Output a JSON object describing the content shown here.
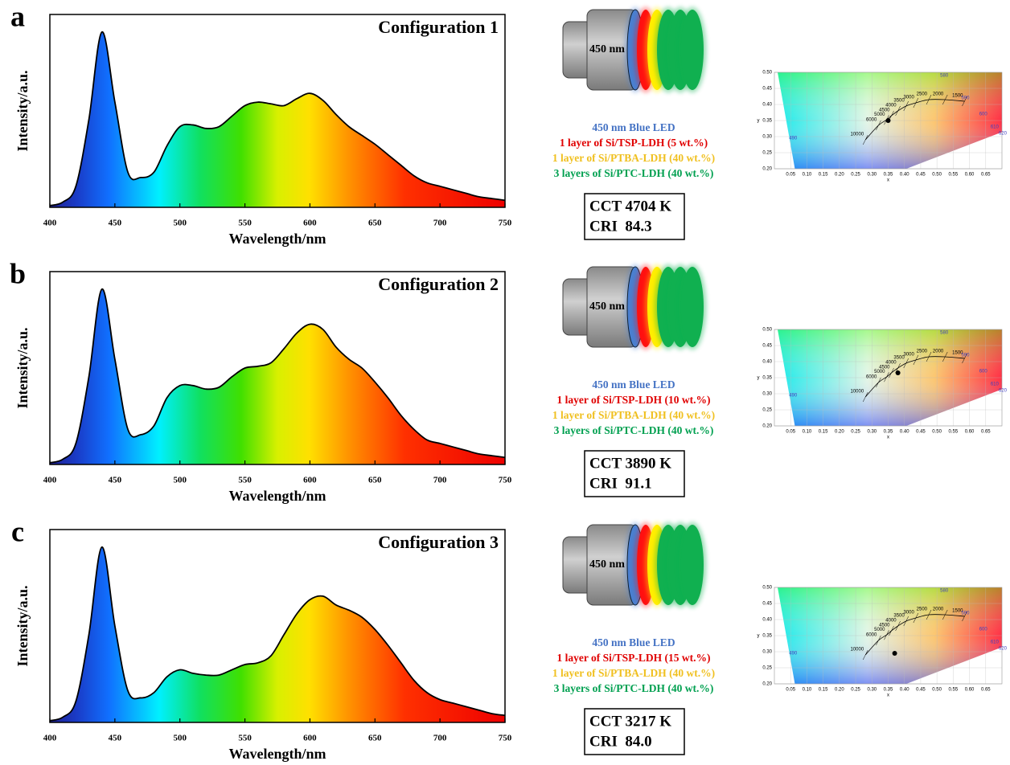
{
  "chart_data": [
    {
      "type": "line",
      "panel_label": "a",
      "title": "Configuration 1",
      "xlabel": "Wavelength/nm",
      "ylabel": "Intensity/a.u.",
      "x": [
        400,
        410,
        420,
        430,
        440,
        450,
        460,
        470,
        480,
        490,
        500,
        510,
        520,
        530,
        540,
        550,
        560,
        570,
        580,
        590,
        600,
        610,
        620,
        630,
        640,
        650,
        660,
        670,
        680,
        690,
        700,
        710,
        720,
        730,
        740,
        750
      ],
      "values": [
        0.01,
        0.03,
        0.12,
        0.5,
        1.0,
        0.6,
        0.2,
        0.17,
        0.2,
        0.35,
        0.46,
        0.47,
        0.45,
        0.46,
        0.52,
        0.58,
        0.6,
        0.59,
        0.58,
        0.62,
        0.65,
        0.61,
        0.53,
        0.46,
        0.41,
        0.36,
        0.3,
        0.24,
        0.18,
        0.14,
        0.12,
        0.1,
        0.08,
        0.06,
        0.05,
        0.04
      ],
      "color": "#000000",
      "xlim": [
        400,
        750
      ],
      "xticks": [
        400,
        450,
        500,
        550,
        600,
        650,
        700,
        750
      ],
      "ylim": [
        0,
        1.1
      ],
      "led_label": "450 nm",
      "layers": [
        {
          "text": "450 nm Blue LED",
          "color": "#4472c4"
        },
        {
          "text": "1 layer of Si/TSP-LDH (5 wt.%)",
          "color": "#e00000"
        },
        {
          "text": "1 layer of Si/PTBA-LDH (40 wt.%)",
          "color": "#f0c020"
        },
        {
          "text": "3 layers of Si/PTC-LDH (40 wt.%)",
          "color": "#00a050"
        }
      ],
      "cct": "CCT 4704 K",
      "cri": "CRI  84.3"
    },
    {
      "type": "scatter",
      "xlabel": "x",
      "ylabel": "y",
      "xlim": [
        0,
        0.7
      ],
      "ylim": [
        0.2,
        0.5
      ],
      "grid": true,
      "xticks": [
        0.05,
        {
          "value": 0.1,
          "label": "0.10"
        },
        0.15,
        {
          "value": 0.2,
          "label": "0.20"
        },
        0.25,
        {
          "value": 0.3,
          "label": "0.30"
        },
        0.35,
        {
          "value": 0.4,
          "label": "0.40"
        },
        0.45,
        {
          "value": 0.5,
          "label": "0.50"
        },
        0.55,
        {
          "value": 0.6,
          "label": "0.60"
        },
        0.65
      ],
      "yticks": [
        {
          "value": 0.2,
          "label": "0.20"
        },
        0.25,
        {
          "value": 0.3,
          "label": "0.30"
        },
        0.35,
        {
          "value": 0.4,
          "label": "0.40"
        },
        0.45,
        {
          "value": 0.5,
          "label": "0.50"
        }
      ],
      "x": [
        0.35
      ],
      "values": [
        0.35
      ],
      "color": "#000000",
      "locus": {
        "labels": [
          "10000",
          "6000",
          "5000",
          "4500",
          "4000",
          "3500",
          "3000",
          "2500",
          "2000",
          "1500"
        ],
        "x": [
          0.28,
          0.32,
          0.345,
          0.36,
          0.38,
          0.405,
          0.435,
          0.475,
          0.525,
          0.585
        ],
        "y": [
          0.29,
          0.335,
          0.352,
          0.365,
          0.38,
          0.395,
          0.405,
          0.415,
          0.415,
          0.41
        ]
      },
      "wavelengths": {
        "labels": [
          "580",
          "590",
          "600",
          "610",
          "620",
          "490"
        ],
        "x": [
          0.51,
          0.575,
          0.63,
          0.665,
          0.69,
          0.045
        ],
        "y": [
          0.49,
          0.42,
          0.37,
          0.33,
          0.31,
          0.295
        ],
        "color": "#4040c0"
      }
    },
    {
      "type": "line",
      "panel_label": "b",
      "title": "Configuration 2",
      "xlabel": "Wavelength/nm",
      "ylabel": "Intensity/a.u.",
      "x": [
        400,
        410,
        420,
        430,
        440,
        450,
        460,
        470,
        480,
        490,
        500,
        510,
        520,
        530,
        540,
        550,
        560,
        570,
        580,
        590,
        600,
        610,
        620,
        630,
        640,
        650,
        660,
        670,
        680,
        690,
        700,
        710,
        720,
        730,
        740,
        750
      ],
      "values": [
        0.01,
        0.03,
        0.12,
        0.5,
        1.0,
        0.6,
        0.2,
        0.17,
        0.22,
        0.38,
        0.45,
        0.45,
        0.43,
        0.44,
        0.5,
        0.55,
        0.56,
        0.58,
        0.66,
        0.75,
        0.8,
        0.77,
        0.67,
        0.6,
        0.55,
        0.47,
        0.38,
        0.28,
        0.2,
        0.14,
        0.12,
        0.1,
        0.08,
        0.06,
        0.05,
        0.04
      ],
      "color": "#000000",
      "xlim": [
        400,
        750
      ],
      "xticks": [
        400,
        450,
        500,
        550,
        600,
        650,
        700,
        750
      ],
      "ylim": [
        0,
        1.1
      ],
      "led_label": "450 nm",
      "layers": [
        {
          "text": "450 nm Blue LED",
          "color": "#4472c4"
        },
        {
          "text": "1 layer of Si/TSP-LDH (10 wt.%)",
          "color": "#e00000"
        },
        {
          "text": "1 layer of Si/PTBA-LDH (40 wt.%)",
          "color": "#f0c020"
        },
        {
          "text": "3 layers of Si/PTC-LDH (40 wt.%)",
          "color": "#00a050"
        }
      ],
      "cct": "CCT 3890 K",
      "cri": "CRI  91.1"
    },
    {
      "type": "scatter",
      "xlabel": "x",
      "ylabel": "y",
      "xlim": [
        0,
        0.7
      ],
      "ylim": [
        0.2,
        0.5
      ],
      "grid": true,
      "xticks": [
        0.05,
        {
          "value": 0.1,
          "label": "0.10"
        },
        0.15,
        {
          "value": 0.2,
          "label": "0.20"
        },
        0.25,
        {
          "value": 0.3,
          "label": "0.30"
        },
        0.35,
        {
          "value": 0.4,
          "label": "0.40"
        },
        0.45,
        {
          "value": 0.5,
          "label": "0.50"
        },
        0.55,
        {
          "value": 0.6,
          "label": "0.60"
        },
        0.65
      ],
      "yticks": [
        {
          "value": 0.2,
          "label": "0.20"
        },
        0.25,
        {
          "value": 0.3,
          "label": "0.30"
        },
        0.35,
        {
          "value": 0.4,
          "label": "0.40"
        },
        0.45,
        {
          "value": 0.5,
          "label": "0.50"
        }
      ],
      "x": [
        0.38
      ],
      "values": [
        0.365
      ],
      "color": "#000000",
      "locus": {
        "labels": [
          "10000",
          "6000",
          "5000",
          "4500",
          "4000",
          "3500",
          "3000",
          "2500",
          "2000",
          "1500"
        ],
        "x": [
          0.28,
          0.32,
          0.345,
          0.36,
          0.38,
          0.405,
          0.435,
          0.475,
          0.525,
          0.585
        ],
        "y": [
          0.29,
          0.335,
          0.352,
          0.365,
          0.38,
          0.395,
          0.405,
          0.415,
          0.415,
          0.41
        ]
      },
      "wavelengths": {
        "labels": [
          "580",
          "590",
          "600",
          "610",
          "620",
          "490"
        ],
        "x": [
          0.51,
          0.575,
          0.63,
          0.665,
          0.69,
          0.045
        ],
        "y": [
          0.49,
          0.42,
          0.37,
          0.33,
          0.31,
          0.295
        ],
        "color": "#4040c0"
      }
    },
    {
      "type": "line",
      "panel_label": "c",
      "title": "Configuration 3",
      "xlabel": "Wavelength/nm",
      "ylabel": "Intensity/a.u.",
      "x": [
        400,
        410,
        420,
        430,
        440,
        450,
        460,
        470,
        480,
        490,
        500,
        510,
        520,
        530,
        540,
        550,
        560,
        570,
        580,
        590,
        600,
        610,
        620,
        630,
        640,
        650,
        660,
        670,
        680,
        690,
        700,
        710,
        720,
        730,
        740,
        750
      ],
      "values": [
        0.01,
        0.03,
        0.12,
        0.5,
        1.0,
        0.55,
        0.18,
        0.14,
        0.17,
        0.26,
        0.3,
        0.28,
        0.27,
        0.27,
        0.3,
        0.33,
        0.34,
        0.38,
        0.5,
        0.62,
        0.7,
        0.72,
        0.67,
        0.64,
        0.6,
        0.53,
        0.44,
        0.34,
        0.24,
        0.17,
        0.13,
        0.11,
        0.09,
        0.07,
        0.05,
        0.04
      ],
      "color": "#000000",
      "xlim": [
        400,
        750
      ],
      "xticks": [
        400,
        450,
        500,
        550,
        600,
        650,
        700,
        750
      ],
      "ylim": [
        0,
        1.1
      ],
      "led_label": "450 nm",
      "layers": [
        {
          "text": "450 nm Blue LED",
          "color": "#4472c4"
        },
        {
          "text": "1 layer of Si/TSP-LDH (15 wt.%)",
          "color": "#e00000"
        },
        {
          "text": "1 layer of Si/PTBA-LDH (40 wt.%)",
          "color": "#f0c020"
        },
        {
          "text": "3 layers of Si/PTC-LDH (40 wt.%)",
          "color": "#00a050"
        }
      ],
      "cct": "CCT 3217 K",
      "cri": "CRI  84.0"
    },
    {
      "type": "scatter",
      "xlabel": "x",
      "ylabel": "y",
      "xlim": [
        0,
        0.7
      ],
      "ylim": [
        0.2,
        0.5
      ],
      "grid": true,
      "xticks": [
        0.05,
        {
          "value": 0.1,
          "label": "0.10"
        },
        0.15,
        {
          "value": 0.2,
          "label": "0.20"
        },
        0.25,
        {
          "value": 0.3,
          "label": "0.30"
        },
        0.35,
        {
          "value": 0.4,
          "label": "0.40"
        },
        0.45,
        {
          "value": 0.5,
          "label": "0.50"
        },
        0.55,
        {
          "value": 0.6,
          "label": "0.60"
        },
        0.65
      ],
      "yticks": [
        {
          "value": 0.2,
          "label": "0.20"
        },
        0.25,
        {
          "value": 0.3,
          "label": "0.30"
        },
        0.35,
        {
          "value": 0.4,
          "label": "0.40"
        },
        0.45,
        {
          "value": 0.5,
          "label": "0.50"
        }
      ],
      "x": [
        0.37
      ],
      "values": [
        0.295
      ],
      "color": "#000000",
      "locus": {
        "labels": [
          "10000",
          "6000",
          "5000",
          "4500",
          "4000",
          "3500",
          "3000",
          "2500",
          "2000",
          "1500"
        ],
        "x": [
          0.28,
          0.32,
          0.345,
          0.36,
          0.38,
          0.405,
          0.435,
          0.475,
          0.525,
          0.585
        ],
        "y": [
          0.29,
          0.335,
          0.352,
          0.365,
          0.38,
          0.395,
          0.405,
          0.415,
          0.415,
          0.41
        ]
      },
      "wavelengths": {
        "labels": [
          "580",
          "590",
          "600",
          "610",
          "620",
          "490"
        ],
        "x": [
          0.51,
          0.575,
          0.63,
          0.665,
          0.69,
          0.045
        ],
        "y": [
          0.49,
          0.42,
          0.37,
          0.33,
          0.31,
          0.295
        ],
        "color": "#4040c0"
      }
    }
  ]
}
